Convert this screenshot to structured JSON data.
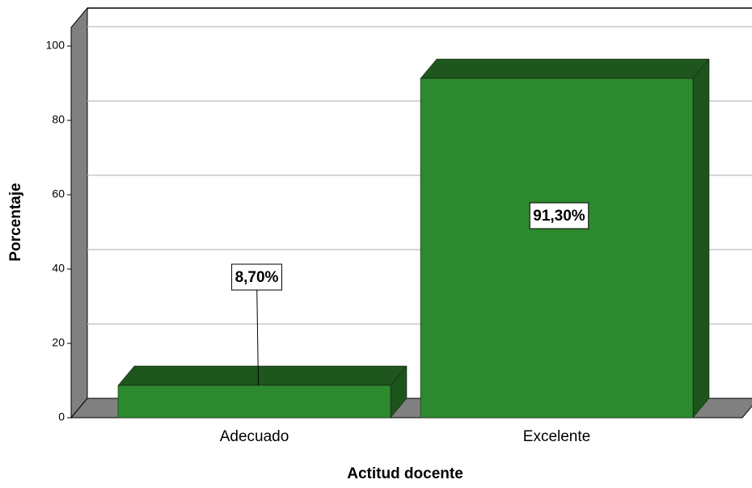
{
  "chart_data": {
    "type": "bar3d",
    "xlabel": "Actitud docente",
    "ylabel": "Porcentaje",
    "categories": [
      "Adecuado",
      "Excelente"
    ],
    "values": [
      8.7,
      91.3
    ],
    "value_labels": [
      "8,70%",
      "91,30%"
    ],
    "color": "#2d892d",
    "ylim": [
      0,
      105
    ],
    "yticks": [
      0,
      20,
      40,
      60,
      80,
      100
    ],
    "grid": true
  }
}
